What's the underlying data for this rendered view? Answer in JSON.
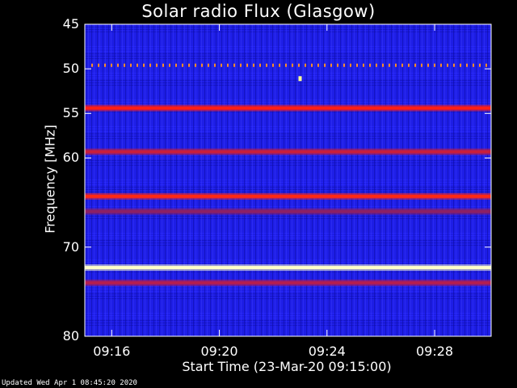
{
  "chart_data": {
    "type": "heatmap",
    "title": "Solar radio Flux (Glasgow)",
    "xlabel": "Start Time (23-Mar-20 09:15:00)",
    "ylabel": "Frequency [MHz]",
    "yticks": [
      "45",
      "50",
      "55",
      "60",
      "70",
      "80"
    ],
    "ytick_values": [
      45,
      50,
      55,
      60,
      70,
      80
    ],
    "xticks": [
      "09:16",
      "09:20",
      "09:24",
      "09:28"
    ],
    "xtick_minutes": [
      1,
      5,
      9,
      13
    ],
    "xlim_minutes": [
      0,
      15.1
    ],
    "ylim": [
      45,
      80
    ],
    "background_color": "#1e1ee6",
    "bands": [
      {
        "freq": 49.6,
        "color": "#ff8c28",
        "style": "dotted"
      },
      {
        "freq": 54.4,
        "color": "#ff1e14"
      },
      {
        "freq": 59.3,
        "color": "#c81e3c"
      },
      {
        "freq": 64.3,
        "color": "#ff2814"
      },
      {
        "freq": 66.0,
        "color": "#8c2064"
      },
      {
        "freq": 72.3,
        "color": "#ffffc8"
      },
      {
        "freq": 74.0,
        "color": "#b41e50"
      }
    ],
    "point": {
      "minute": 8.0,
      "freq": 51.1,
      "color": "#ffff96"
    }
  },
  "footer": "Updated Wed Apr  1 08:45:20 2020"
}
